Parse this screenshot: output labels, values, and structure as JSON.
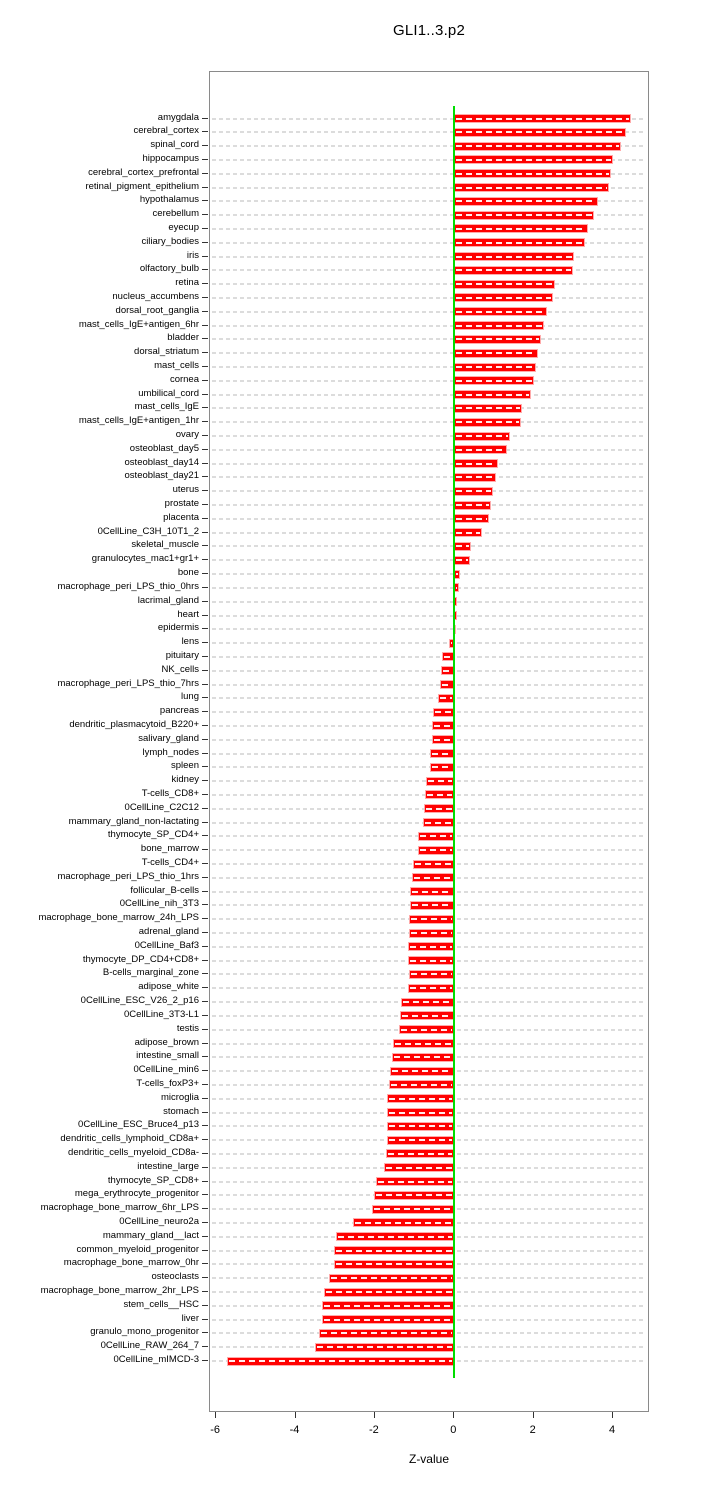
{
  "title": "GLI1..3.p2",
  "chart_data": {
    "type": "bar",
    "orientation": "horizontal",
    "title": "GLI1..3.p2",
    "xlabel": "Z-value",
    "xlim": [
      -6.17,
      4.92
    ],
    "xticks": [
      -6,
      -4,
      -2,
      0,
      2,
      4
    ],
    "grid": true,
    "bar_color": "#ff0000",
    "bar_dash_color": "#ffffff",
    "gridline_color": "#dcdcdc",
    "zero_line_color": "#00dd00",
    "box_color": "#8a8a8a",
    "categories": [
      "amygdala",
      "cerebral_cortex",
      "spinal_cord",
      "hippocampus",
      "cerebral_cortex_prefrontal",
      "retinal_pigment_epithelium",
      "hypothalamus",
      "cerebellum",
      "eyecup",
      "ciliary_bodies",
      "iris",
      "olfactory_bulb",
      "retina",
      "nucleus_accumbens",
      "dorsal_root_ganglia",
      "mast_cells_IgE+antigen_6hr",
      "bladder",
      "dorsal_striatum",
      "mast_cells",
      "cornea",
      "umbilical_cord",
      "mast_cells_IgE",
      "mast_cells_IgE+antigen_1hr",
      "ovary",
      "osteoblast_day5",
      "osteoblast_day14",
      "osteoblast_day21",
      "uterus",
      "prostate",
      "placenta",
      "0CellLine_C3H_10T1_2",
      "skeletal_muscle",
      "granulocytes_mac1+gr1+",
      "bone",
      "macrophage_peri_LPS_thio_0hrs",
      "lacrimal_gland",
      "heart",
      "epidermis",
      "lens",
      "pituitary",
      "NK_cells",
      "macrophage_peri_LPS_thio_7hrs",
      "lung",
      "pancreas",
      "dendritic_plasmacytoid_B220+",
      "salivary_gland",
      "lymph_nodes",
      "spleen",
      "kidney",
      "T-cells_CD8+",
      "0CellLine_C2C12",
      "mammary_gland_non-lactating",
      "thymocyte_SP_CD4+",
      "bone_marrow",
      "T-cells_CD4+",
      "macrophage_peri_LPS_thio_1hrs",
      "follicular_B-cells",
      "0CellLine_nih_3T3",
      "macrophage_bone_marrow_24h_LPS",
      "adrenal_gland",
      "0CellLine_Baf3",
      "thymocyte_DP_CD4+CD8+",
      "B-cells_marginal_zone",
      "adipose_white",
      "0CellLine_ESC_V26_2_p16",
      "0CellLine_3T3-L1",
      "testis",
      "adipose_brown",
      "intestine_small",
      "0CellLine_min6",
      "T-cells_foxP3+",
      "microglia",
      "stomach",
      "0CellLine_ESC_Bruce4_p13",
      "dendritic_cells_lymphoid_CD8a+",
      "dendritic_cells_myeloid_CD8a-",
      "intestine_large",
      "thymocyte_SP_CD8+",
      "mega_erythrocyte_progenitor",
      "macrophage_bone_marrow_6hr_LPS",
      "0CellLine_neuro2a",
      "mammary_gland__lact",
      "common_myeloid_progenitor",
      "macrophage_bone_marrow_0hr",
      "osteoclasts",
      "macrophage_bone_marrow_2hr_LPS",
      "stem_cells__HSC",
      "liver",
      "granulo_mono_progenitor",
      "0CellLine_RAW_264_7",
      "0CellLine_mIMCD-3"
    ],
    "values": [
      4.45,
      4.32,
      4.2,
      4.0,
      3.95,
      3.9,
      3.62,
      3.51,
      3.38,
      3.3,
      3.02,
      2.98,
      2.54,
      2.49,
      2.33,
      2.27,
      2.18,
      2.12,
      2.07,
      2.0,
      1.93,
      1.7,
      1.68,
      1.4,
      1.34,
      1.1,
      1.04,
      0.97,
      0.93,
      0.88,
      0.7,
      0.41,
      0.39,
      0.15,
      0.11,
      0.08,
      0.06,
      0.05,
      -0.13,
      -0.3,
      -0.33,
      -0.37,
      -0.4,
      -0.53,
      -0.55,
      -0.56,
      -0.6,
      -0.62,
      -0.71,
      -0.74,
      -0.77,
      -0.79,
      -0.91,
      -0.92,
      -1.04,
      -1.07,
      -1.11,
      -1.12,
      -1.13,
      -1.14,
      -1.16,
      -1.17,
      -1.15,
      -1.17,
      -1.35,
      -1.37,
      -1.39,
      -1.55,
      -1.57,
      -1.63,
      -1.65,
      -1.69,
      -1.7,
      -1.69,
      -1.7,
      -1.73,
      -1.77,
      -1.98,
      -2.02,
      -2.07,
      -2.55,
      -2.97,
      -3.03,
      -3.03,
      -3.15,
      -3.28,
      -3.32,
      -3.33,
      -3.4,
      -3.51,
      -5.72
    ]
  }
}
